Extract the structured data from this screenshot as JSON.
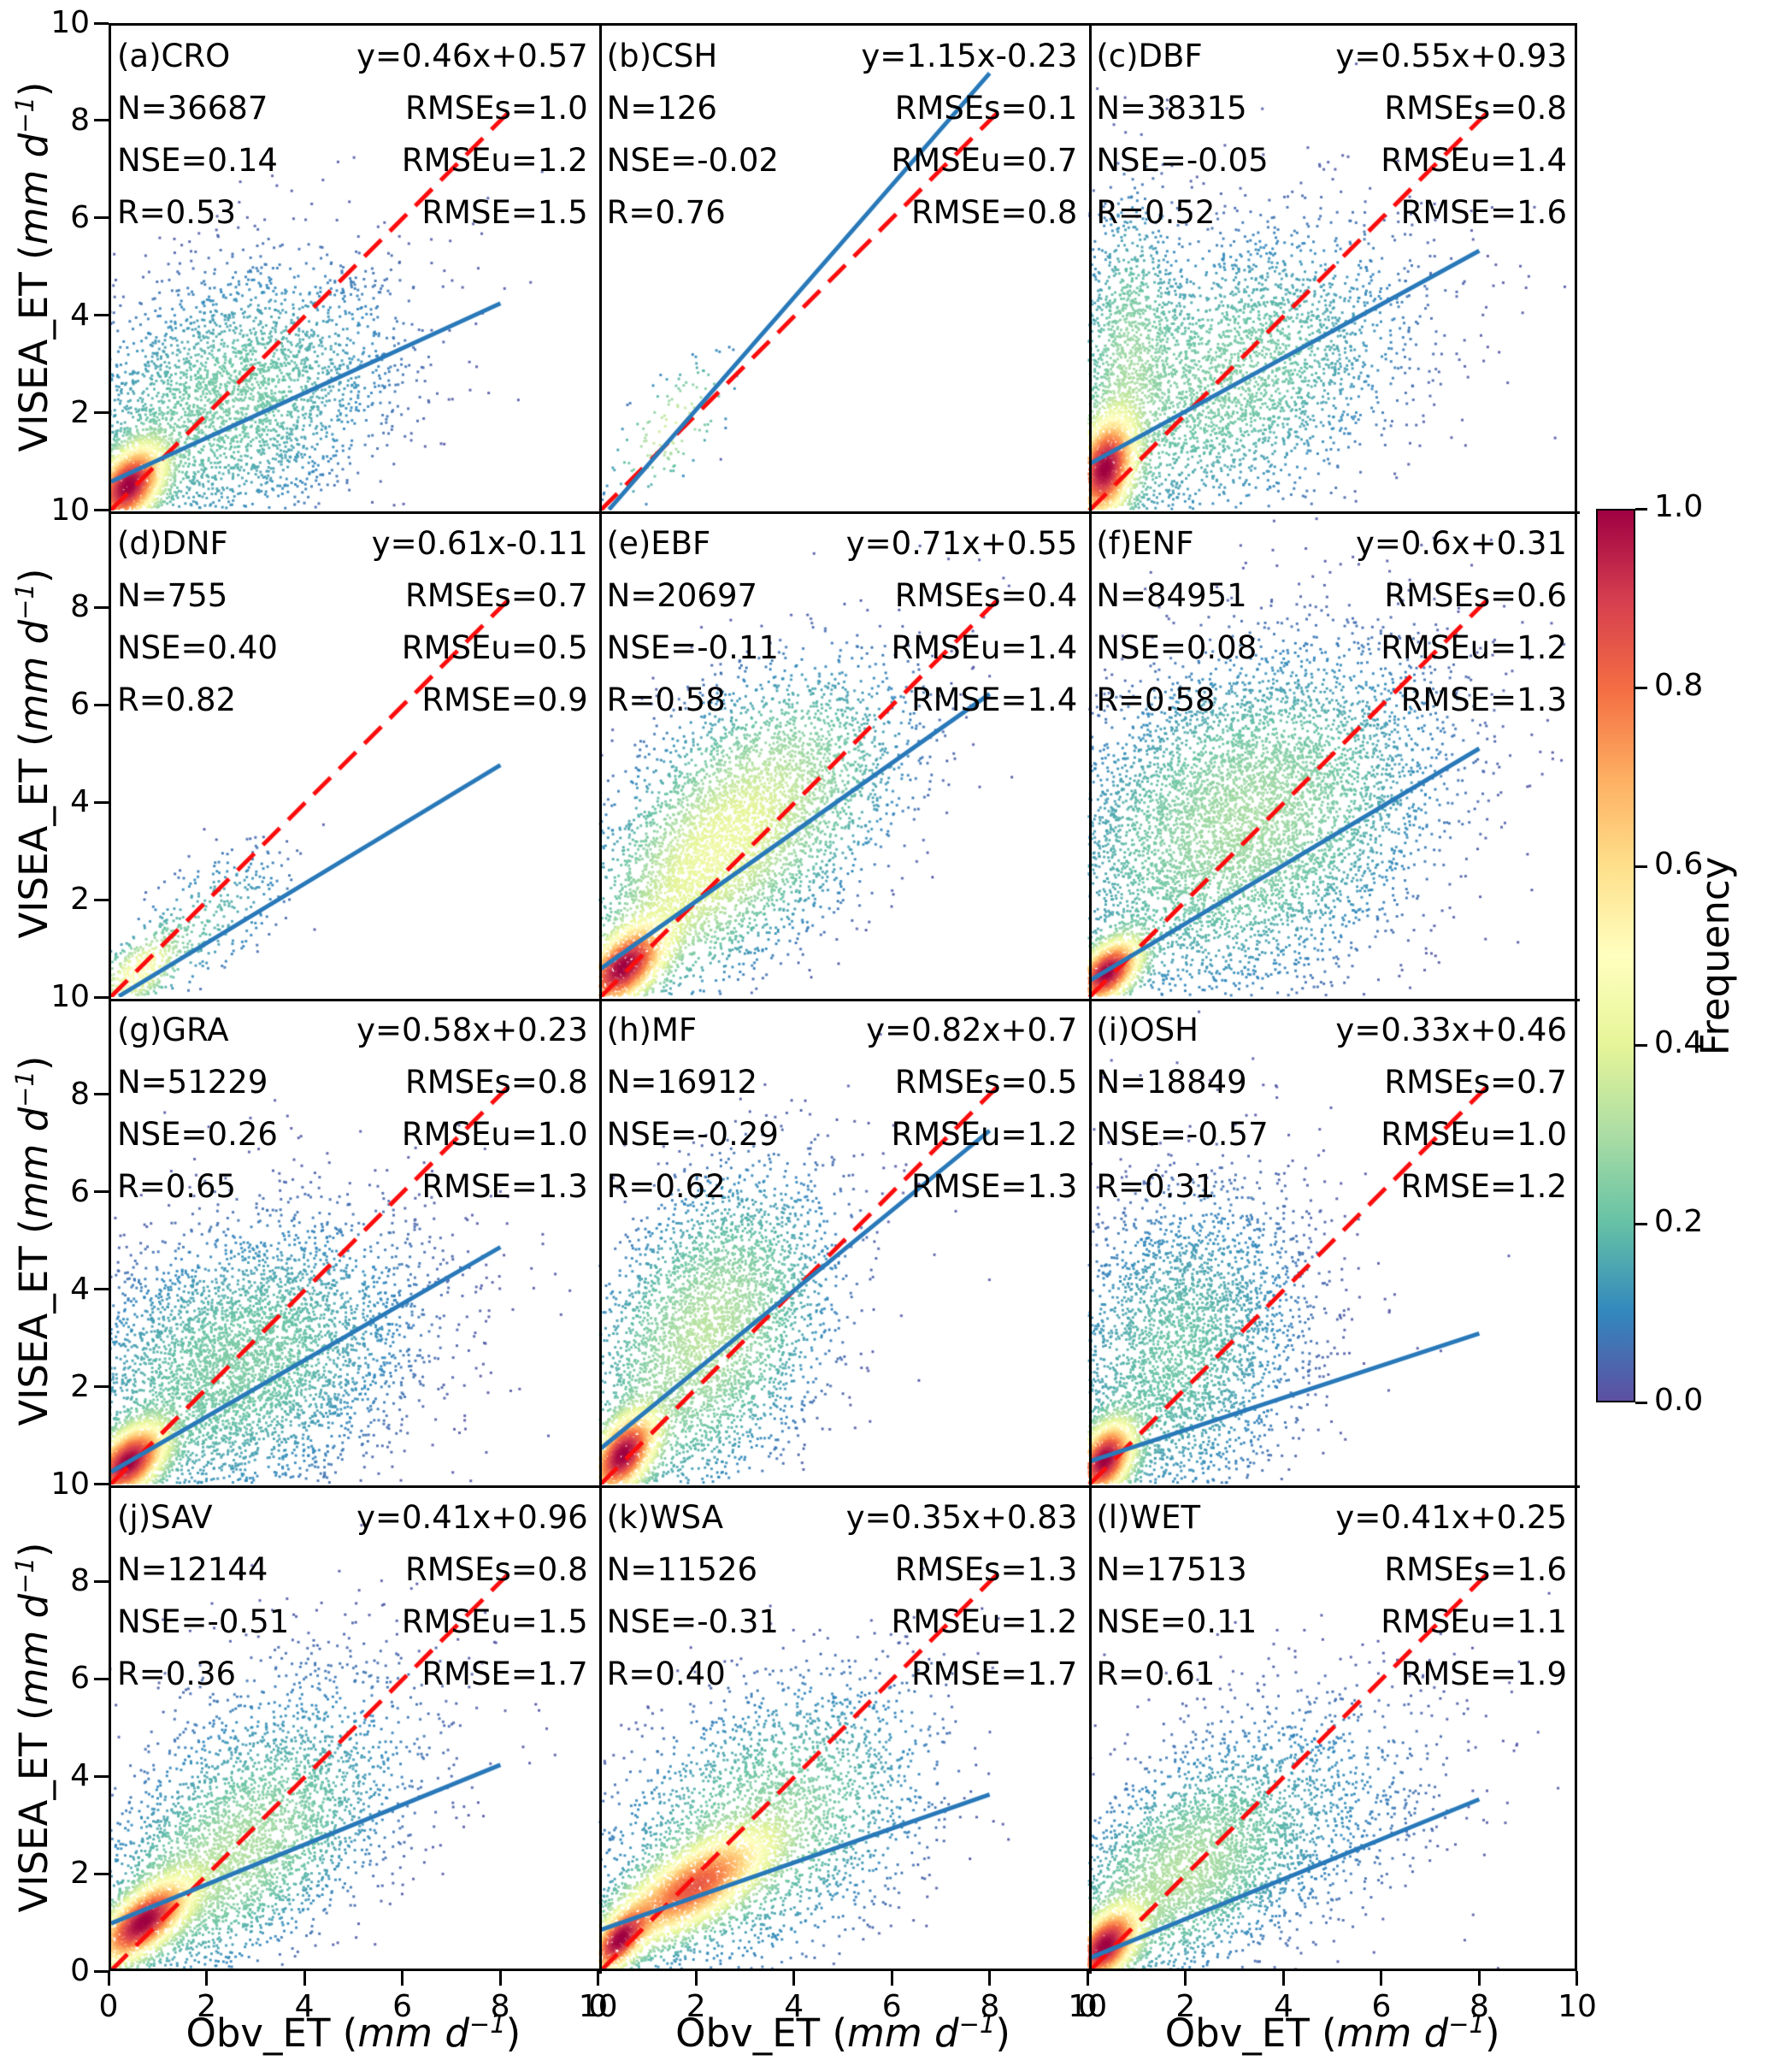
{
  "figure": {
    "x_axis_label": {
      "prefix": "Obv_ET (",
      "italic": "mm d",
      "sup": "−1",
      "suffix": ")"
    },
    "y_axis_label": {
      "prefix": "VISEA_ET (",
      "italic": "mm d",
      "sup": "−1",
      "suffix": ")"
    },
    "colors": {
      "identity_line": "#fb0d0d",
      "regression_line": "#2979b9",
      "frame": "#000000"
    }
  },
  "colorbar": {
    "label": "Frequency",
    "ticks": [
      "1.0",
      "0.8",
      "0.6",
      "0.4",
      "0.2",
      "0.0"
    ],
    "colormap": "Spectral_r",
    "stops": [
      "#5e4fa2",
      "#3288bd",
      "#66c2a5",
      "#abdda4",
      "#e6f598",
      "#ffffbf",
      "#fee08b",
      "#fdae61",
      "#f46d43",
      "#d53e4f",
      "#9e0142"
    ]
  },
  "chart_data": {
    "type": "scatter",
    "subtype": "density_scatter_grid",
    "grid": {
      "rows": 4,
      "cols": 3
    },
    "x_range": [
      0,
      10
    ],
    "y_range": [
      0,
      10
    ],
    "x_ticks": [
      "0",
      "2",
      "4",
      "6",
      "8",
      "10"
    ],
    "y_ticks": [
      "10",
      "8",
      "6",
      "4",
      "2",
      "0"
    ],
    "identity_line": {
      "from": [
        0,
        0
      ],
      "to": [
        8.2,
        8.2
      ],
      "style": "dashed"
    },
    "regression_x_span": [
      0.05,
      8.0
    ],
    "panels": [
      {
        "id": "a",
        "land_cover": "CRO",
        "slope": 0.46,
        "intercept": 0.57,
        "N": 36687,
        "NSE": 0.14,
        "R": 0.53,
        "RMSEs": 1.0,
        "RMSEu": 1.2,
        "RMSE": 1.5,
        "text": {
          "label": "(a)CRO",
          "eq": "y=0.46x+0.57",
          "n": "N=36687",
          "rmses": "RMSEs=1.0",
          "nse": "NSE=0.14",
          "rmseu": "RMSEu=1.2",
          "r": "R=0.53",
          "rmse": "RMSE=1.5"
        },
        "cloud": {
          "seed": 11,
          "points": 6000,
          "gamma": 0.6,
          "tmax": 1,
          "components": [
            [
              0.4,
              0.5,
              0.42,
              0.48,
              0.45,
              0.45
            ],
            [
              2.4,
              2.2,
              1.8,
              1.5,
              0.35,
              0.55
            ]
          ]
        }
      },
      {
        "id": "b",
        "land_cover": "CSH",
        "slope": 1.15,
        "intercept": -0.23,
        "N": 126,
        "NSE": -0.02,
        "R": 0.76,
        "RMSEs": 0.1,
        "RMSEu": 0.7,
        "RMSE": 0.8,
        "text": {
          "label": "(b)CSH",
          "eq": "y=1.15x-0.23",
          "n": "N=126",
          "rmses": "RMSEs=0.1",
          "nse": "NSE=-0.02",
          "rmseu": "RMSEu=0.7",
          "r": "R=0.76",
          "rmse": "RMSE=0.8"
        },
        "cloud": {
          "seed": 22,
          "points": 126,
          "gamma": 0.6,
          "tmax": 0.38,
          "components": [
            [
              1.5,
              1.7,
              0.65,
              0.75,
              0.65,
              1
            ]
          ]
        }
      },
      {
        "id": "c",
        "land_cover": "DBF",
        "slope": 0.55,
        "intercept": 0.93,
        "N": 38315,
        "NSE": -0.05,
        "R": 0.52,
        "RMSEs": 0.8,
        "RMSEu": 1.4,
        "RMSE": 1.6,
        "text": {
          "label": "(c)DBF",
          "eq": "y=0.55x+0.93",
          "n": "N=38315",
          "rmses": "RMSEs=0.8",
          "nse": "NSE=-0.05",
          "rmseu": "RMSEu=1.4",
          "r": "R=0.52",
          "rmse": "RMSE=1.6"
        },
        "cloud": {
          "seed": 33,
          "points": 6500,
          "gamma": 0.6,
          "tmax": 1,
          "components": [
            [
              0.35,
              0.85,
              0.35,
              0.6,
              0.3,
              0.36
            ],
            [
              0.8,
              3.2,
              0.5,
              1.8,
              0.1,
              0.14
            ],
            [
              2.8,
              2.7,
              1.9,
              1.6,
              0.35,
              0.5
            ]
          ]
        }
      },
      {
        "id": "d",
        "land_cover": "DNF",
        "slope": 0.61,
        "intercept": -0.11,
        "N": 755,
        "NSE": 0.4,
        "R": 0.82,
        "RMSEs": 0.7,
        "RMSEu": 0.5,
        "RMSE": 0.9,
        "text": {
          "label": "(d)DNF",
          "eq": "y=0.61x-0.11",
          "n": "N=755",
          "rmses": "RMSEs=0.7",
          "nse": "NSE=0.40",
          "rmseu": "RMSEu=0.5",
          "r": "R=0.82",
          "rmse": "RMSE=0.9"
        },
        "cloud": {
          "seed": 44,
          "points": 755,
          "gamma": 0.6,
          "tmax": 0.5,
          "components": [
            [
              0.6,
              0.5,
              0.5,
              0.45,
              0.6,
              0.6
            ],
            [
              2.0,
              1.6,
              0.9,
              0.8,
              0.55,
              0.4
            ]
          ]
        }
      },
      {
        "id": "e",
        "land_cover": "EBF",
        "slope": 0.71,
        "intercept": 0.55,
        "N": 20697,
        "NSE": -0.11,
        "R": 0.58,
        "RMSEs": 0.4,
        "RMSEu": 1.4,
        "RMSE": 1.4,
        "text": {
          "label": "(e)EBF",
          "eq": "y=0.71x+0.55",
          "n": "N=20697",
          "rmses": "RMSEs=0.4",
          "nse": "NSE=-0.11",
          "rmseu": "RMSEu=1.4",
          "r": "R=0.58",
          "rmse": "RMSE=1.4"
        },
        "cloud": {
          "seed": 55,
          "points": 7000,
          "gamma": 0.6,
          "tmax": 1,
          "components": [
            [
              0.5,
              0.6,
              0.5,
              0.5,
              0.55,
              0.28
            ],
            [
              3.2,
              3.8,
              1.5,
              1.5,
              0.45,
              0.5
            ],
            [
              1.8,
              2.2,
              1.1,
              1.2,
              0.5,
              0.22
            ]
          ]
        }
      },
      {
        "id": "f",
        "land_cover": "ENF",
        "slope": 0.6,
        "intercept": 0.31,
        "N": 84951,
        "NSE": 0.08,
        "R": 0.58,
        "RMSEs": 0.6,
        "RMSEu": 1.2,
        "RMSE": 1.3,
        "text": {
          "label": "(f)ENF",
          "eq": "y=0.6x+0.31",
          "n": "N=84951",
          "rmses": "RMSEs=0.6",
          "nse": "NSE=0.08",
          "rmseu": "RMSEu=1.2",
          "r": "R=0.58",
          "rmse": "RMSE=1.3"
        },
        "cloud": {
          "seed": 66,
          "points": 8000,
          "gamma": 0.62,
          "tmax": 1,
          "components": [
            [
              0.4,
              0.5,
              0.4,
              0.4,
              0.5,
              0.22
            ],
            [
              3.2,
              3.6,
              2.0,
              1.8,
              0.3,
              0.78
            ]
          ]
        }
      },
      {
        "id": "g",
        "land_cover": "GRA",
        "slope": 0.58,
        "intercept": 0.23,
        "N": 51229,
        "NSE": 0.26,
        "R": 0.65,
        "RMSEs": 0.8,
        "RMSEu": 1.0,
        "RMSE": 1.3,
        "text": {
          "label": "(g)GRA",
          "eq": "y=0.58x+0.23",
          "n": "N=51229",
          "rmses": "RMSEs=0.8",
          "nse": "NSE=0.26",
          "rmseu": "RMSEu=1.0",
          "r": "R=0.65",
          "rmse": "RMSE=1.3"
        },
        "cloud": {
          "seed": 77,
          "points": 8000,
          "gamma": 0.62,
          "tmax": 1,
          "components": [
            [
              0.4,
              0.45,
              0.45,
              0.45,
              0.5,
              0.38
            ],
            [
              2.6,
              2.4,
              1.9,
              1.6,
              0.35,
              0.62
            ]
          ]
        }
      },
      {
        "id": "h",
        "land_cover": "MF",
        "slope": 0.82,
        "intercept": 0.7,
        "N": 16912,
        "NSE": -0.29,
        "R": 0.62,
        "RMSEs": 0.5,
        "RMSEu": 1.2,
        "RMSE": 1.3,
        "text": {
          "label": "(h)MF",
          "eq": "y=0.82x+0.7",
          "n": "N=16912",
          "rmses": "RMSEs=0.5",
          "nse": "NSE=-0.29",
          "rmseu": "RMSEu=1.2",
          "r": "R=0.62",
          "rmse": "RMSE=1.3"
        },
        "cloud": {
          "seed": 88,
          "points": 6000,
          "gamma": 0.62,
          "tmax": 1,
          "components": [
            [
              0.5,
              0.6,
              0.4,
              0.5,
              0.5,
              0.33
            ],
            [
              2.2,
              3.0,
              1.3,
              1.7,
              0.4,
              0.67
            ]
          ]
        }
      },
      {
        "id": "i",
        "land_cover": "OSH",
        "slope": 0.33,
        "intercept": 0.46,
        "N": 18849,
        "NSE": -0.57,
        "R": 0.31,
        "RMSEs": 0.7,
        "RMSEu": 1.0,
        "RMSE": 1.2,
        "text": {
          "label": "(i)OSH",
          "eq": "y=0.33x+0.46",
          "n": "N=18849",
          "rmses": "RMSEs=0.7",
          "nse": "NSE=-0.57",
          "rmseu": "RMSEu=1.0",
          "r": "R=0.31",
          "rmse": "RMSE=1.2"
        },
        "cloud": {
          "seed": 99,
          "points": 6000,
          "gamma": 0.62,
          "tmax": 1,
          "components": [
            [
              0.35,
              0.5,
              0.35,
              0.45,
              0.4,
              0.42
            ],
            [
              1.8,
              2.6,
              1.4,
              1.8,
              0.25,
              0.58
            ]
          ]
        }
      },
      {
        "id": "j",
        "land_cover": "SAV",
        "slope": 0.41,
        "intercept": 0.96,
        "N": 12144,
        "NSE": -0.51,
        "R": 0.36,
        "RMSEs": 0.8,
        "RMSEu": 1.5,
        "RMSE": 1.7,
        "text": {
          "label": "(j)SAV",
          "eq": "y=0.41x+0.96",
          "n": "N=12144",
          "rmses": "RMSEs=0.8",
          "nse": "NSE=-0.51",
          "rmseu": "RMSEu=1.5",
          "r": "R=0.36",
          "rmse": "RMSE=1.7"
        },
        "cloud": {
          "seed": 110,
          "points": 6500,
          "gamma": 0.6,
          "tmax": 1,
          "components": [
            [
              0.7,
              1.0,
              0.55,
              0.5,
              0.65,
              0.42
            ],
            [
              2.4,
              2.2,
              1.4,
              1.2,
              0.5,
              0.4
            ],
            [
              3.5,
              4.0,
              1.8,
              1.5,
              0.3,
              0.18
            ]
          ]
        }
      },
      {
        "id": "k",
        "land_cover": "WSA",
        "slope": 0.35,
        "intercept": 0.83,
        "N": 11526,
        "NSE": -0.31,
        "R": 0.4,
        "RMSEs": 1.3,
        "RMSEu": 1.2,
        "RMSE": 1.7,
        "text": {
          "label": "(k)WSA",
          "eq": "y=0.35x+0.83",
          "n": "N=11526",
          "rmses": "RMSEs=1.3",
          "nse": "NSE=-0.31",
          "rmseu": "RMSEu=1.2",
          "r": "R=0.40",
          "rmse": "RMSE=1.7"
        },
        "cloud": {
          "seed": 121,
          "points": 7000,
          "gamma": 0.6,
          "tmax": 1,
          "components": [
            [
              0.4,
              0.6,
              0.35,
              0.4,
              0.6,
              0.15
            ],
            [
              1.9,
              1.7,
              0.9,
              0.65,
              0.7,
              0.45
            ],
            [
              3.4,
              3.0,
              1.7,
              1.5,
              0.4,
              0.4
            ]
          ]
        }
      },
      {
        "id": "l",
        "land_cover": "WET",
        "slope": 0.41,
        "intercept": 0.25,
        "N": 17513,
        "NSE": 0.11,
        "R": 0.61,
        "RMSEs": 1.6,
        "RMSEu": 1.1,
        "RMSE": 1.9,
        "text": {
          "label": "(l)WET",
          "eq": "y=0.41x+0.25",
          "n": "N=17513",
          "rmses": "RMSEs=1.6",
          "nse": "NSE=0.11",
          "rmseu": "RMSEu=1.1",
          "r": "R=0.61",
          "rmse": "RMSE=1.9"
        },
        "cloud": {
          "seed": 132,
          "points": 6500,
          "gamma": 0.6,
          "tmax": 1,
          "components": [
            [
              0.35,
              0.5,
              0.4,
              0.45,
              0.5,
              0.38
            ],
            [
              1.8,
              1.9,
              1.2,
              1.1,
              0.45,
              0.4
            ],
            [
              3.8,
              3.2,
              1.9,
              1.5,
              0.3,
              0.22
            ]
          ]
        }
      }
    ]
  }
}
